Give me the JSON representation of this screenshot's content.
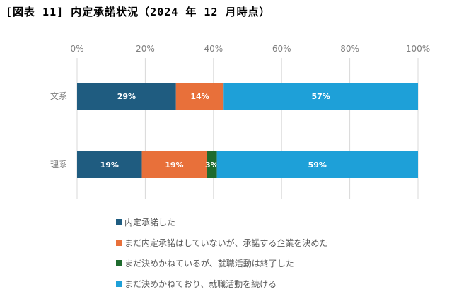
{
  "chart_data": {
    "type": "bar",
    "orientation": "horizontal",
    "stacked": true,
    "title": "[図表 11] 内定承諾状況（2024 年 12 月時点）",
    "categories": [
      "文系",
      "理系"
    ],
    "x_ticks": [
      "0%",
      "20%",
      "40%",
      "60%",
      "80%",
      "100%"
    ],
    "xlim": [
      0,
      100
    ],
    "grid": true,
    "legend_position": "bottom",
    "series": [
      {
        "name": "内定承諾した",
        "color": "#1f5c80",
        "values": [
          29,
          19
        ],
        "labels": [
          "29%",
          "19%"
        ]
      },
      {
        "name": "まだ内定承諾はしていないが、承諾する企業を決めた",
        "color": "#e8703a",
        "values": [
          14,
          19
        ],
        "labels": [
          "14%",
          "19%"
        ]
      },
      {
        "name": "まだ決めかねているが、就職活動は終了した",
        "color": "#1e6b2e",
        "values": [
          0,
          3
        ],
        "labels": [
          "",
          "3%"
        ]
      },
      {
        "name": "まだ決めかねており、就職活動を続ける",
        "color": "#1ea0d8",
        "values": [
          57,
          59
        ],
        "labels": [
          "57%",
          "59%"
        ]
      }
    ]
  }
}
